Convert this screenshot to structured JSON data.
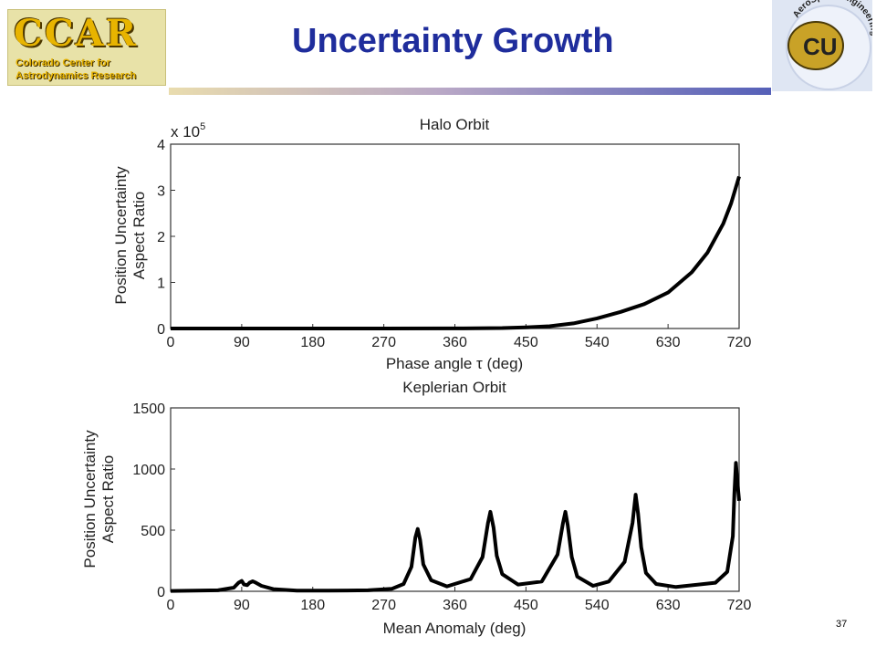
{
  "header": {
    "title": "Uncertainty Growth",
    "logo_left_big": "CCAR",
    "logo_left_line1": "Colorado Center for",
    "logo_left_line2": "Astrodynamics Research",
    "logo_right_text": "AeroSpace Engineering",
    "logo_right_mark": "CU"
  },
  "page_number": "37",
  "colors": {
    "title": "#1f2d9c",
    "curve": "#000000"
  },
  "chart_data": [
    {
      "type": "line",
      "title": "Halo Orbit",
      "xlabel": "Phase angle τ (deg)",
      "ylabel_line1": "Position Uncertainty",
      "ylabel_line2": "Aspect Ratio",
      "y_scale_label": "x 10",
      "y_scale_exp": "5",
      "xlim": [
        0,
        720
      ],
      "ylim": [
        0,
        4
      ],
      "xticks": [
        0,
        90,
        180,
        270,
        360,
        450,
        540,
        630,
        720
      ],
      "yticks": [
        0,
        1,
        2,
        3,
        4
      ],
      "grid": false,
      "series": [
        {
          "x": [
            0,
            90,
            180,
            270,
            360,
            420,
            450,
            480,
            510,
            540,
            570,
            600,
            630,
            660,
            680,
            700,
            710,
            720
          ],
          "y": [
            0.0,
            0.0,
            0.0,
            0.0,
            0.002,
            0.01,
            0.025,
            0.05,
            0.11,
            0.22,
            0.36,
            0.53,
            0.78,
            1.22,
            1.65,
            2.28,
            2.72,
            3.3
          ]
        }
      ]
    },
    {
      "type": "line",
      "title": "Keplerian Orbit",
      "xlabel": "Mean Anomaly (deg)",
      "ylabel_line1": "Position Uncertainty",
      "ylabel_line2": "Aspect Ratio",
      "xlim": [
        0,
        720
      ],
      "ylim": [
        0,
        1500
      ],
      "xticks": [
        0,
        90,
        180,
        270,
        360,
        450,
        540,
        630,
        720
      ],
      "yticks": [
        0,
        500,
        1000,
        1500
      ],
      "grid": false,
      "series": [
        {
          "x": [
            0,
            60,
            80,
            86,
            90,
            93,
            97,
            100,
            104,
            108,
            115,
            130,
            160,
            200,
            250,
            280,
            295,
            305,
            310,
            313,
            316,
            320,
            330,
            350,
            380,
            395,
            402,
            405,
            409,
            413,
            420,
            440,
            470,
            490,
            497,
            500,
            503,
            508,
            515,
            535,
            555,
            575,
            585,
            589,
            592,
            596,
            602,
            615,
            640,
            690,
            705,
            712,
            714,
            716,
            718,
            720
          ],
          "y": [
            3,
            8,
            30,
            70,
            85,
            55,
            50,
            70,
            82,
            70,
            45,
            18,
            6,
            5,
            8,
            20,
            60,
            200,
            440,
            510,
            420,
            220,
            90,
            40,
            100,
            280,
            560,
            650,
            520,
            290,
            140,
            55,
            80,
            300,
            560,
            650,
            540,
            280,
            120,
            45,
            80,
            240,
            560,
            790,
            640,
            360,
            150,
            60,
            35,
            70,
            160,
            450,
            800,
            1050,
            880,
            740
          ]
        }
      ]
    }
  ]
}
